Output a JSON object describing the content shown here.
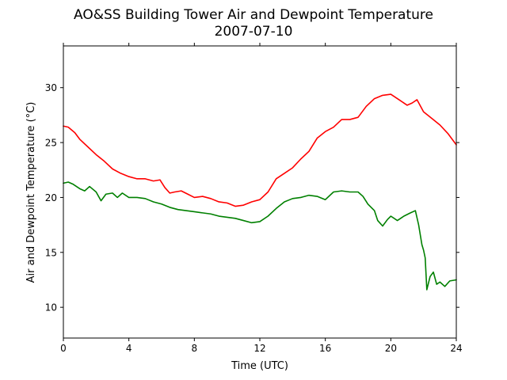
{
  "chart_data": {
    "type": "line",
    "title": "AO&SS Building Tower Air and Dewpoint Temperature",
    "subtitle": "2007-07-10",
    "xlabel": "Time (UTC)",
    "ylabel": "Air and Dewpoint Temperature (°C)",
    "xlim": [
      0,
      24
    ],
    "ylim": [
      7.2,
      33.8
    ],
    "xticks": [
      0,
      4,
      8,
      12,
      16,
      20,
      24
    ],
    "yticks": [
      10,
      15,
      20,
      25,
      30
    ],
    "grid": false,
    "legend": "none",
    "series": [
      {
        "color": "#ff0000",
        "x": [
          0,
          0.3,
          0.7,
          1,
          1.5,
          2,
          2.5,
          3,
          3.5,
          4,
          4.5,
          5,
          5.5,
          5.9,
          6.2,
          6.5,
          6.8,
          7.2,
          7.6,
          8,
          8.5,
          9,
          9.5,
          10,
          10.5,
          11,
          11.5,
          12,
          12.5,
          13,
          13.5,
          14,
          14.5,
          15,
          15.5,
          16,
          16.5,
          17,
          17.5,
          18,
          18.5,
          19,
          19.5,
          20,
          20.5,
          21,
          21.3,
          21.6,
          22,
          22.5,
          23,
          23.5,
          24
        ],
        "values": [
          26.5,
          26.4,
          25.9,
          25.3,
          24.6,
          23.9,
          23.3,
          22.6,
          22.2,
          21.9,
          21.7,
          21.7,
          21.5,
          21.6,
          20.9,
          20.4,
          20.5,
          20.6,
          20.3,
          20.0,
          20.1,
          19.9,
          19.6,
          19.5,
          19.2,
          19.3,
          19.6,
          19.8,
          20.5,
          21.7,
          22.2,
          22.7,
          23.5,
          24.2,
          25.4,
          26.0,
          26.4,
          27.1,
          27.1,
          27.3,
          28.3,
          29.0,
          29.3,
          29.4,
          28.9,
          28.4,
          28.6,
          28.9,
          27.8,
          27.2,
          26.6,
          25.8,
          24.8
        ]
      },
      {
        "color": "#008000",
        "x": [
          0,
          0.3,
          0.6,
          1,
          1.3,
          1.6,
          2,
          2.3,
          2.6,
          3,
          3.3,
          3.6,
          4,
          4.5,
          5,
          5.5,
          6,
          6.5,
          7,
          7.5,
          8,
          8.5,
          9,
          9.5,
          10,
          10.5,
          11,
          11.5,
          12,
          12.5,
          13,
          13.5,
          14,
          14.5,
          15,
          15.5,
          16,
          16.5,
          17,
          17.5,
          18,
          18.3,
          18.6,
          19,
          19.2,
          19.5,
          19.8,
          20,
          20.4,
          20.8,
          21.2,
          21.5,
          21.7,
          21.9,
          22,
          22.1,
          22.2,
          22.4,
          22.6,
          22.8,
          23,
          23.3,
          23.6,
          24
        ],
        "values": [
          21.3,
          21.4,
          21.2,
          20.8,
          20.6,
          21.0,
          20.5,
          19.7,
          20.3,
          20.4,
          20.0,
          20.4,
          20.0,
          20.0,
          19.9,
          19.6,
          19.4,
          19.1,
          18.9,
          18.8,
          18.7,
          18.6,
          18.5,
          18.3,
          18.2,
          18.1,
          17.9,
          17.7,
          17.8,
          18.3,
          19.0,
          19.6,
          19.9,
          20.0,
          20.2,
          20.1,
          19.8,
          20.5,
          20.6,
          20.5,
          20.5,
          20.1,
          19.4,
          18.8,
          17.9,
          17.4,
          18.0,
          18.3,
          17.9,
          18.3,
          18.6,
          18.8,
          17.5,
          15.7,
          15.2,
          14.5,
          11.6,
          12.8,
          13.2,
          12.1,
          12.3,
          11.9,
          12.4,
          12.5
        ]
      }
    ]
  }
}
